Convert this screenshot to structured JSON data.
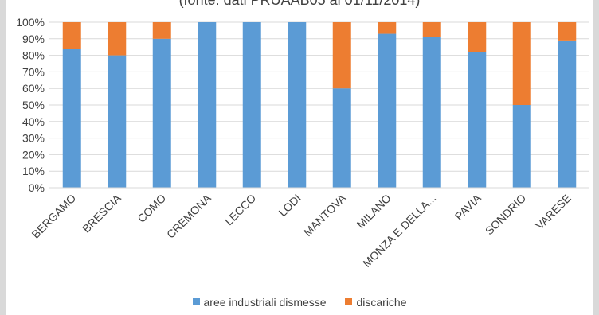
{
  "chart_data": {
    "type": "bar",
    "stacked": "percent",
    "title": "(fonte: dati PRUAAB05 al 01/11/2014)",
    "categories": [
      "BERGAMO",
      "BRESCIA",
      "COMO",
      "CREMONA",
      "LECCO",
      "LODI",
      "MANTOVA",
      "MILANO",
      "MONZA E DELLA...",
      "PAVIA",
      "SONDRIO",
      "VARESE"
    ],
    "series": [
      {
        "name": "aree industriali dismesse",
        "color": "#5b9bd5",
        "values": [
          84,
          80,
          90,
          100,
          100,
          100,
          60,
          93,
          91,
          82,
          50,
          89
        ]
      },
      {
        "name": "discariche",
        "color": "#ed7d31",
        "values": [
          16,
          20,
          10,
          0,
          0,
          0,
          40,
          7,
          9,
          18,
          50,
          11
        ]
      }
    ],
    "yticks": [
      "0%",
      "10%",
      "20%",
      "30%",
      "40%",
      "50%",
      "60%",
      "70%",
      "80%",
      "90%",
      "100%"
    ],
    "ylim": [
      0,
      100
    ],
    "grid": true,
    "legend": "bottom"
  }
}
